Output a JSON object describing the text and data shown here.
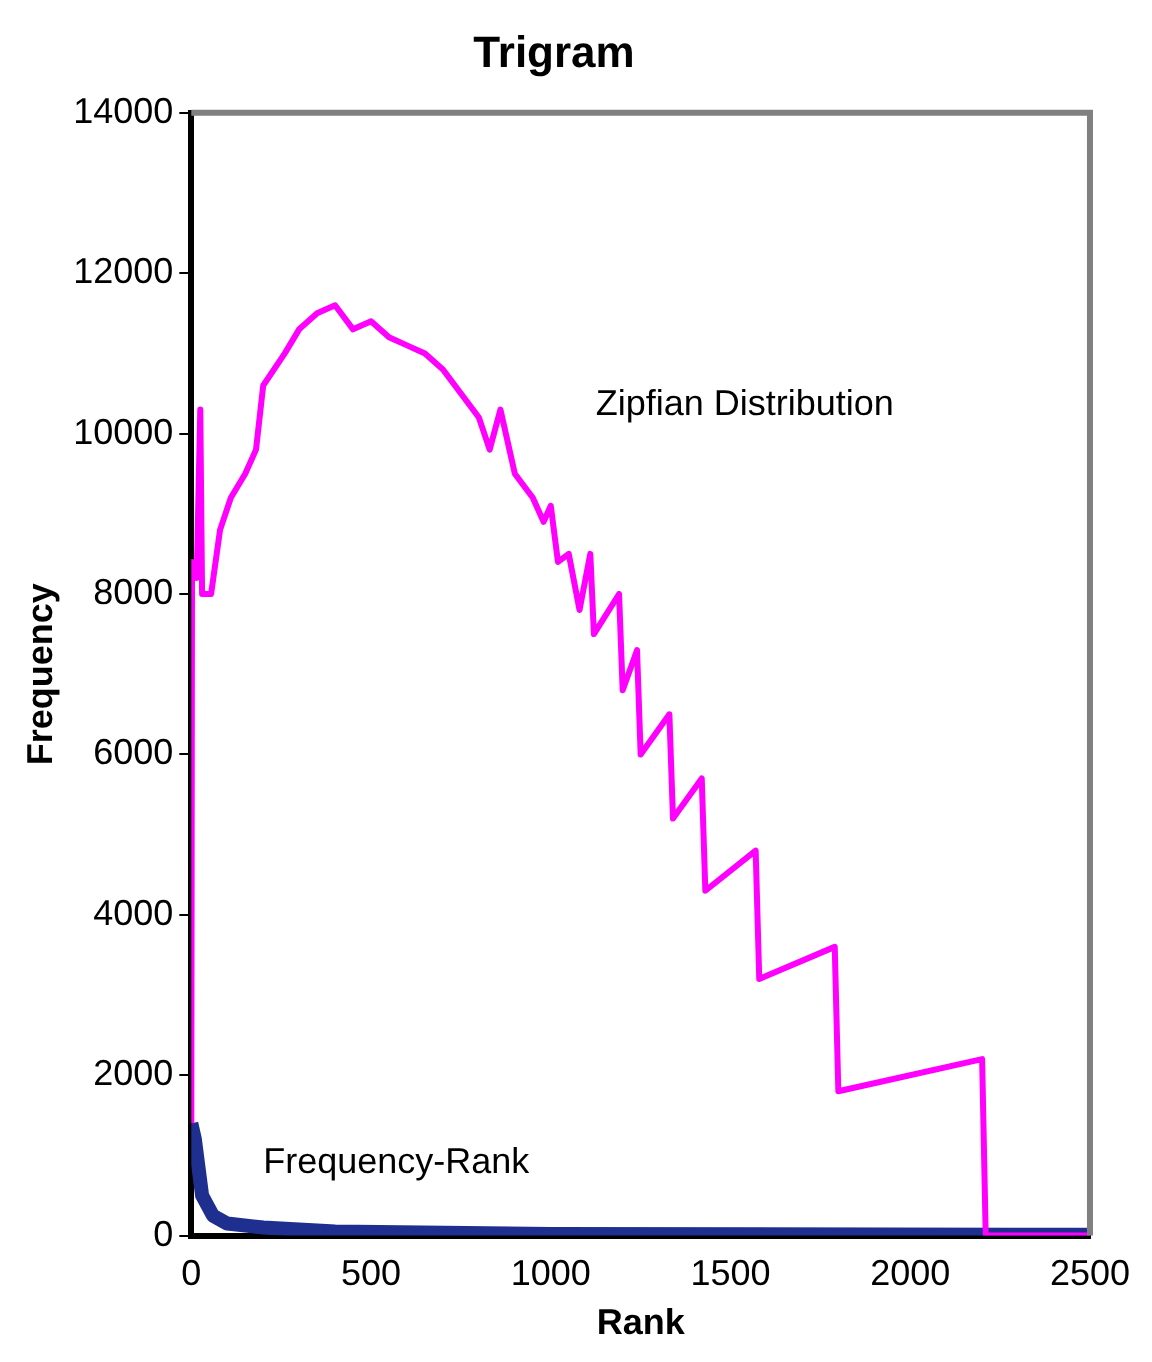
{
  "chart_data": {
    "type": "line",
    "title": "Trigram",
    "xlabel": "Rank",
    "ylabel": "Frequency",
    "xlim": [
      0,
      2500
    ],
    "xticks": [
      0,
      500,
      1000,
      1500,
      2000,
      2500
    ],
    "ylim": [
      0,
      14000
    ],
    "yticks": [
      0,
      2000,
      4000,
      6000,
      8000,
      10000,
      12000,
      14000
    ],
    "grid": false,
    "legend": false,
    "marker": "none",
    "series": [
      {
        "name": "Zipfian Distribution",
        "color": "#ff00ff",
        "x": [
          0,
          2,
          15,
          25,
          30,
          55,
          80,
          110,
          150,
          180,
          200,
          260,
          300,
          350,
          400,
          450,
          500,
          550,
          600,
          650,
          700,
          750,
          800,
          830,
          860,
          900,
          950,
          980,
          1000,
          1020,
          1050,
          1080,
          1110,
          1120,
          1190,
          1200,
          1240,
          1250,
          1330,
          1340,
          1420,
          1430,
          1570,
          1580,
          1790,
          1800,
          2200,
          2210,
          2500
        ],
        "values": [
          1400,
          8400,
          8200,
          10300,
          8000,
          8000,
          8800,
          9200,
          9500,
          9800,
          10600,
          11000,
          11300,
          11500,
          11600,
          11300,
          11400,
          11200,
          11100,
          11000,
          10800,
          10500,
          10200,
          9800,
          10300,
          9500,
          9200,
          8900,
          9100,
          8400,
          8500,
          7800,
          8500,
          7500,
          8000,
          6800,
          7300,
          6000,
          6500,
          5200,
          5700,
          4300,
          4800,
          3200,
          3600,
          1800,
          2200,
          0,
          0
        ]
      },
      {
        "name": "Frequency-Rank",
        "color": "#1f2f8f",
        "x": [
          0,
          10,
          30,
          60,
          100,
          200,
          400,
          1000,
          2500
        ],
        "values": [
          1400,
          1200,
          500,
          250,
          150,
          100,
          50,
          20,
          10
        ]
      }
    ]
  }
}
